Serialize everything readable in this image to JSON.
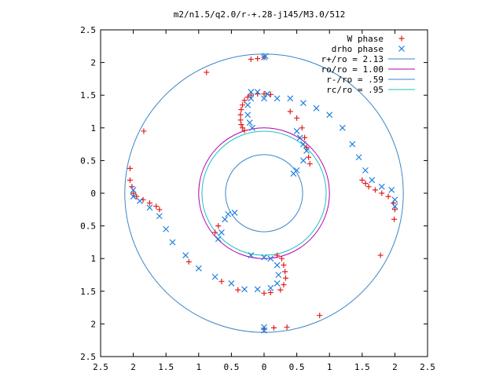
{
  "chart_data": {
    "type": "scatter",
    "title": "m2/n1.5/q2.0/r-+.28-j145/M3.0/512",
    "xlim": [
      -2.5,
      2.5
    ],
    "ylim": [
      -2.5,
      2.5
    ],
    "x_ticks": [
      -2.5,
      -2,
      -1.5,
      -1,
      -0.5,
      0,
      0.5,
      1,
      1.5,
      2,
      2.5
    ],
    "y_ticks": [
      -2.5,
      -2,
      -1.5,
      -1,
      -0.5,
      0,
      0.5,
      1,
      1.5,
      2,
      2.5
    ],
    "x_tick_labels": [
      "2.5",
      "2",
      "1.5",
      "1",
      "0.5",
      "0",
      "0.5",
      "1",
      "1.5",
      "2",
      "2.5"
    ],
    "y_tick_labels": [
      "2.5",
      "2",
      "1.5",
      "1",
      "0.5",
      "0",
      "0.5",
      "1",
      "1.5",
      "2",
      "2.5"
    ],
    "legend_position": "top-right",
    "circles": [
      {
        "name": "r+/ro = 2.13",
        "radius": 2.13,
        "color": "#3a86c8"
      },
      {
        "name": "ro/ro = 1.00",
        "radius": 1.0,
        "color": "#b000b0"
      },
      {
        "name": "r-/ro = .59",
        "radius": 0.59,
        "color": "#3a86c8"
      },
      {
        "name": "rc/ro = .95",
        "radius": 0.95,
        "color": "#20c0c0"
      }
    ],
    "series": [
      {
        "name": "W phase",
        "marker": "plus",
        "color": "#e02020",
        "points": [
          [
            -0.2,
            2.05
          ],
          [
            -0.1,
            2.06
          ],
          [
            0.0,
            2.08
          ],
          [
            -0.25,
            1.47
          ],
          [
            -0.3,
            1.42
          ],
          [
            -0.33,
            1.35
          ],
          [
            -0.35,
            1.28
          ],
          [
            -0.36,
            1.2
          ],
          [
            -0.36,
            1.12
          ],
          [
            -0.35,
            1.05
          ],
          [
            -0.33,
            1.0
          ],
          [
            -0.3,
            0.96
          ],
          [
            -0.2,
            1.5
          ],
          [
            -0.1,
            1.52
          ],
          [
            0.0,
            1.52
          ],
          [
            0.1,
            1.51
          ],
          [
            0.4,
            1.25
          ],
          [
            0.5,
            1.15
          ],
          [
            0.58,
            1.0
          ],
          [
            0.62,
            0.85
          ],
          [
            0.65,
            0.7
          ],
          [
            0.68,
            0.55
          ],
          [
            0.7,
            0.45
          ],
          [
            1.5,
            0.2
          ],
          [
            1.55,
            0.15
          ],
          [
            1.6,
            0.1
          ],
          [
            1.7,
            0.05
          ],
          [
            1.8,
            0.0
          ],
          [
            1.9,
            -0.05
          ],
          [
            1.98,
            -0.15
          ],
          [
            2.0,
            -0.25
          ],
          [
            1.99,
            -0.4
          ],
          [
            1.78,
            -0.95
          ],
          [
            0.85,
            -1.87
          ],
          [
            0.35,
            -2.05
          ],
          [
            0.15,
            -2.06
          ],
          [
            0.0,
            -2.08
          ],
          [
            0.2,
            -0.95
          ],
          [
            0.27,
            -1.0
          ],
          [
            0.3,
            -1.1
          ],
          [
            0.32,
            -1.2
          ],
          [
            0.33,
            -1.3
          ],
          [
            0.3,
            -1.4
          ],
          [
            0.25,
            -1.48
          ],
          [
            0.1,
            -1.52
          ],
          [
            0.0,
            -1.53
          ],
          [
            -2.05,
            0.2
          ],
          [
            -2.02,
            0.1
          ],
          [
            -2.0,
            0.0
          ],
          [
            -1.95,
            -0.05
          ],
          [
            -1.85,
            -0.1
          ],
          [
            -1.75,
            -0.15
          ],
          [
            -1.65,
            -0.2
          ],
          [
            -1.6,
            -0.25
          ],
          [
            -2.05,
            0.38
          ],
          [
            -1.84,
            0.95
          ],
          [
            -0.88,
            1.85
          ],
          [
            -1.15,
            -1.05
          ],
          [
            -0.65,
            -1.35
          ],
          [
            -0.4,
            -1.48
          ],
          [
            -0.75,
            -0.6
          ],
          [
            -0.7,
            -0.5
          ]
        ]
      },
      {
        "name": "drho phase",
        "marker": "cross",
        "color": "#2080e0",
        "points": [
          [
            0.0,
            2.08
          ],
          [
            0.02,
            2.1
          ],
          [
            -0.2,
            1.45
          ],
          [
            -0.25,
            1.35
          ],
          [
            -0.25,
            1.2
          ],
          [
            -0.22,
            1.08
          ],
          [
            -0.18,
            1.0
          ],
          [
            0.0,
            1.45
          ],
          [
            0.2,
            1.45
          ],
          [
            0.4,
            1.45
          ],
          [
            0.6,
            1.38
          ],
          [
            0.8,
            1.3
          ],
          [
            1.0,
            1.2
          ],
          [
            1.2,
            1.0
          ],
          [
            1.35,
            0.75
          ],
          [
            1.45,
            0.55
          ],
          [
            1.55,
            0.35
          ],
          [
            1.65,
            0.2
          ],
          [
            1.8,
            0.1
          ],
          [
            1.95,
            0.05
          ],
          [
            2.0,
            -0.1
          ],
          [
            2.0,
            -0.2
          ],
          [
            0.5,
            0.95
          ],
          [
            0.55,
            0.85
          ],
          [
            0.6,
            0.75
          ],
          [
            0.65,
            0.65
          ],
          [
            0.6,
            0.5
          ],
          [
            0.5,
            0.35
          ],
          [
            0.45,
            0.3
          ],
          [
            0.0,
            -2.05
          ],
          [
            0.0,
            -2.1
          ],
          [
            -0.2,
            -0.95
          ],
          [
            0.0,
            -0.98
          ],
          [
            0.1,
            -1.0
          ],
          [
            0.2,
            -1.1
          ],
          [
            0.22,
            -1.25
          ],
          [
            0.2,
            -1.38
          ],
          [
            0.1,
            -1.45
          ],
          [
            -0.1,
            -1.47
          ],
          [
            -0.3,
            -1.47
          ],
          [
            -0.5,
            -1.38
          ],
          [
            -0.75,
            -1.28
          ],
          [
            -1.0,
            -1.15
          ],
          [
            -1.2,
            -0.95
          ],
          [
            -1.4,
            -0.75
          ],
          [
            -1.5,
            -0.55
          ],
          [
            -1.6,
            -0.35
          ],
          [
            -1.75,
            -0.22
          ],
          [
            -1.9,
            -0.12
          ],
          [
            -2.0,
            -0.05
          ],
          [
            -2.0,
            0.05
          ],
          [
            -0.7,
            -0.7
          ],
          [
            -0.65,
            -0.6
          ],
          [
            -0.6,
            -0.4
          ],
          [
            -0.55,
            -0.32
          ],
          [
            -0.45,
            -0.3
          ],
          [
            -0.2,
            1.55
          ],
          [
            -0.1,
            1.55
          ],
          [
            0.05,
            1.52
          ]
        ]
      }
    ]
  },
  "legend": {
    "items": [
      {
        "label": "W phase"
      },
      {
        "label": "drho phase"
      },
      {
        "label": "r+/ro = 2.13"
      },
      {
        "label": "ro/ro = 1.00"
      },
      {
        "label": "r-/ro = .59"
      },
      {
        "label": "rc/ro = .95"
      }
    ]
  }
}
